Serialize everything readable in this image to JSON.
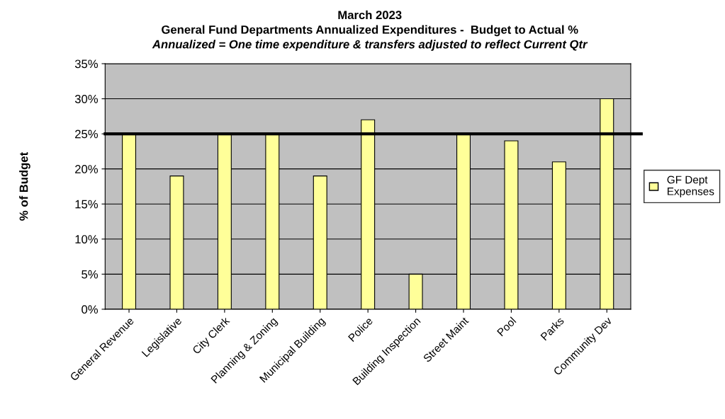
{
  "chart_data": {
    "type": "bar",
    "title": "March 2023",
    "subtitle": "General Fund Departments Annualized Expenditures -  Budget to Actual %",
    "annotations": [
      "Annualized = One time expenditure & transfers adjusted to reflect Current Qtr"
    ],
    "ylabel": "% of Budget",
    "categories": [
      "General Revenue",
      "Legislative",
      "City Clerk",
      "Planning & Zoning",
      "Municipal Building",
      "Police",
      "Building Inspection",
      "Street Maint",
      "Pool",
      "Parks",
      "Community Dev"
    ],
    "series": [
      {
        "name": "GF Dept\nExpenses",
        "color": "#ffff99",
        "values": [
          25,
          19,
          25,
          25,
          19,
          27,
          5,
          25,
          24,
          21,
          30
        ]
      }
    ],
    "ylim": [
      0,
      35
    ],
    "yticks": [
      {
        "value": 0,
        "label": "0%"
      },
      {
        "value": 5,
        "label": "5%"
      },
      {
        "value": 10,
        "label": "10%"
      },
      {
        "value": 15,
        "label": "15%"
      },
      {
        "value": 20,
        "label": "20%"
      },
      {
        "value": 25,
        "label": "25%"
      },
      {
        "value": 30,
        "label": "30%"
      },
      {
        "value": 35,
        "label": "35%"
      }
    ],
    "ref_lines": [
      {
        "axis": "y",
        "value": 25,
        "label": null,
        "color": "#000000"
      }
    ],
    "grid": "y",
    "legend": "right"
  }
}
